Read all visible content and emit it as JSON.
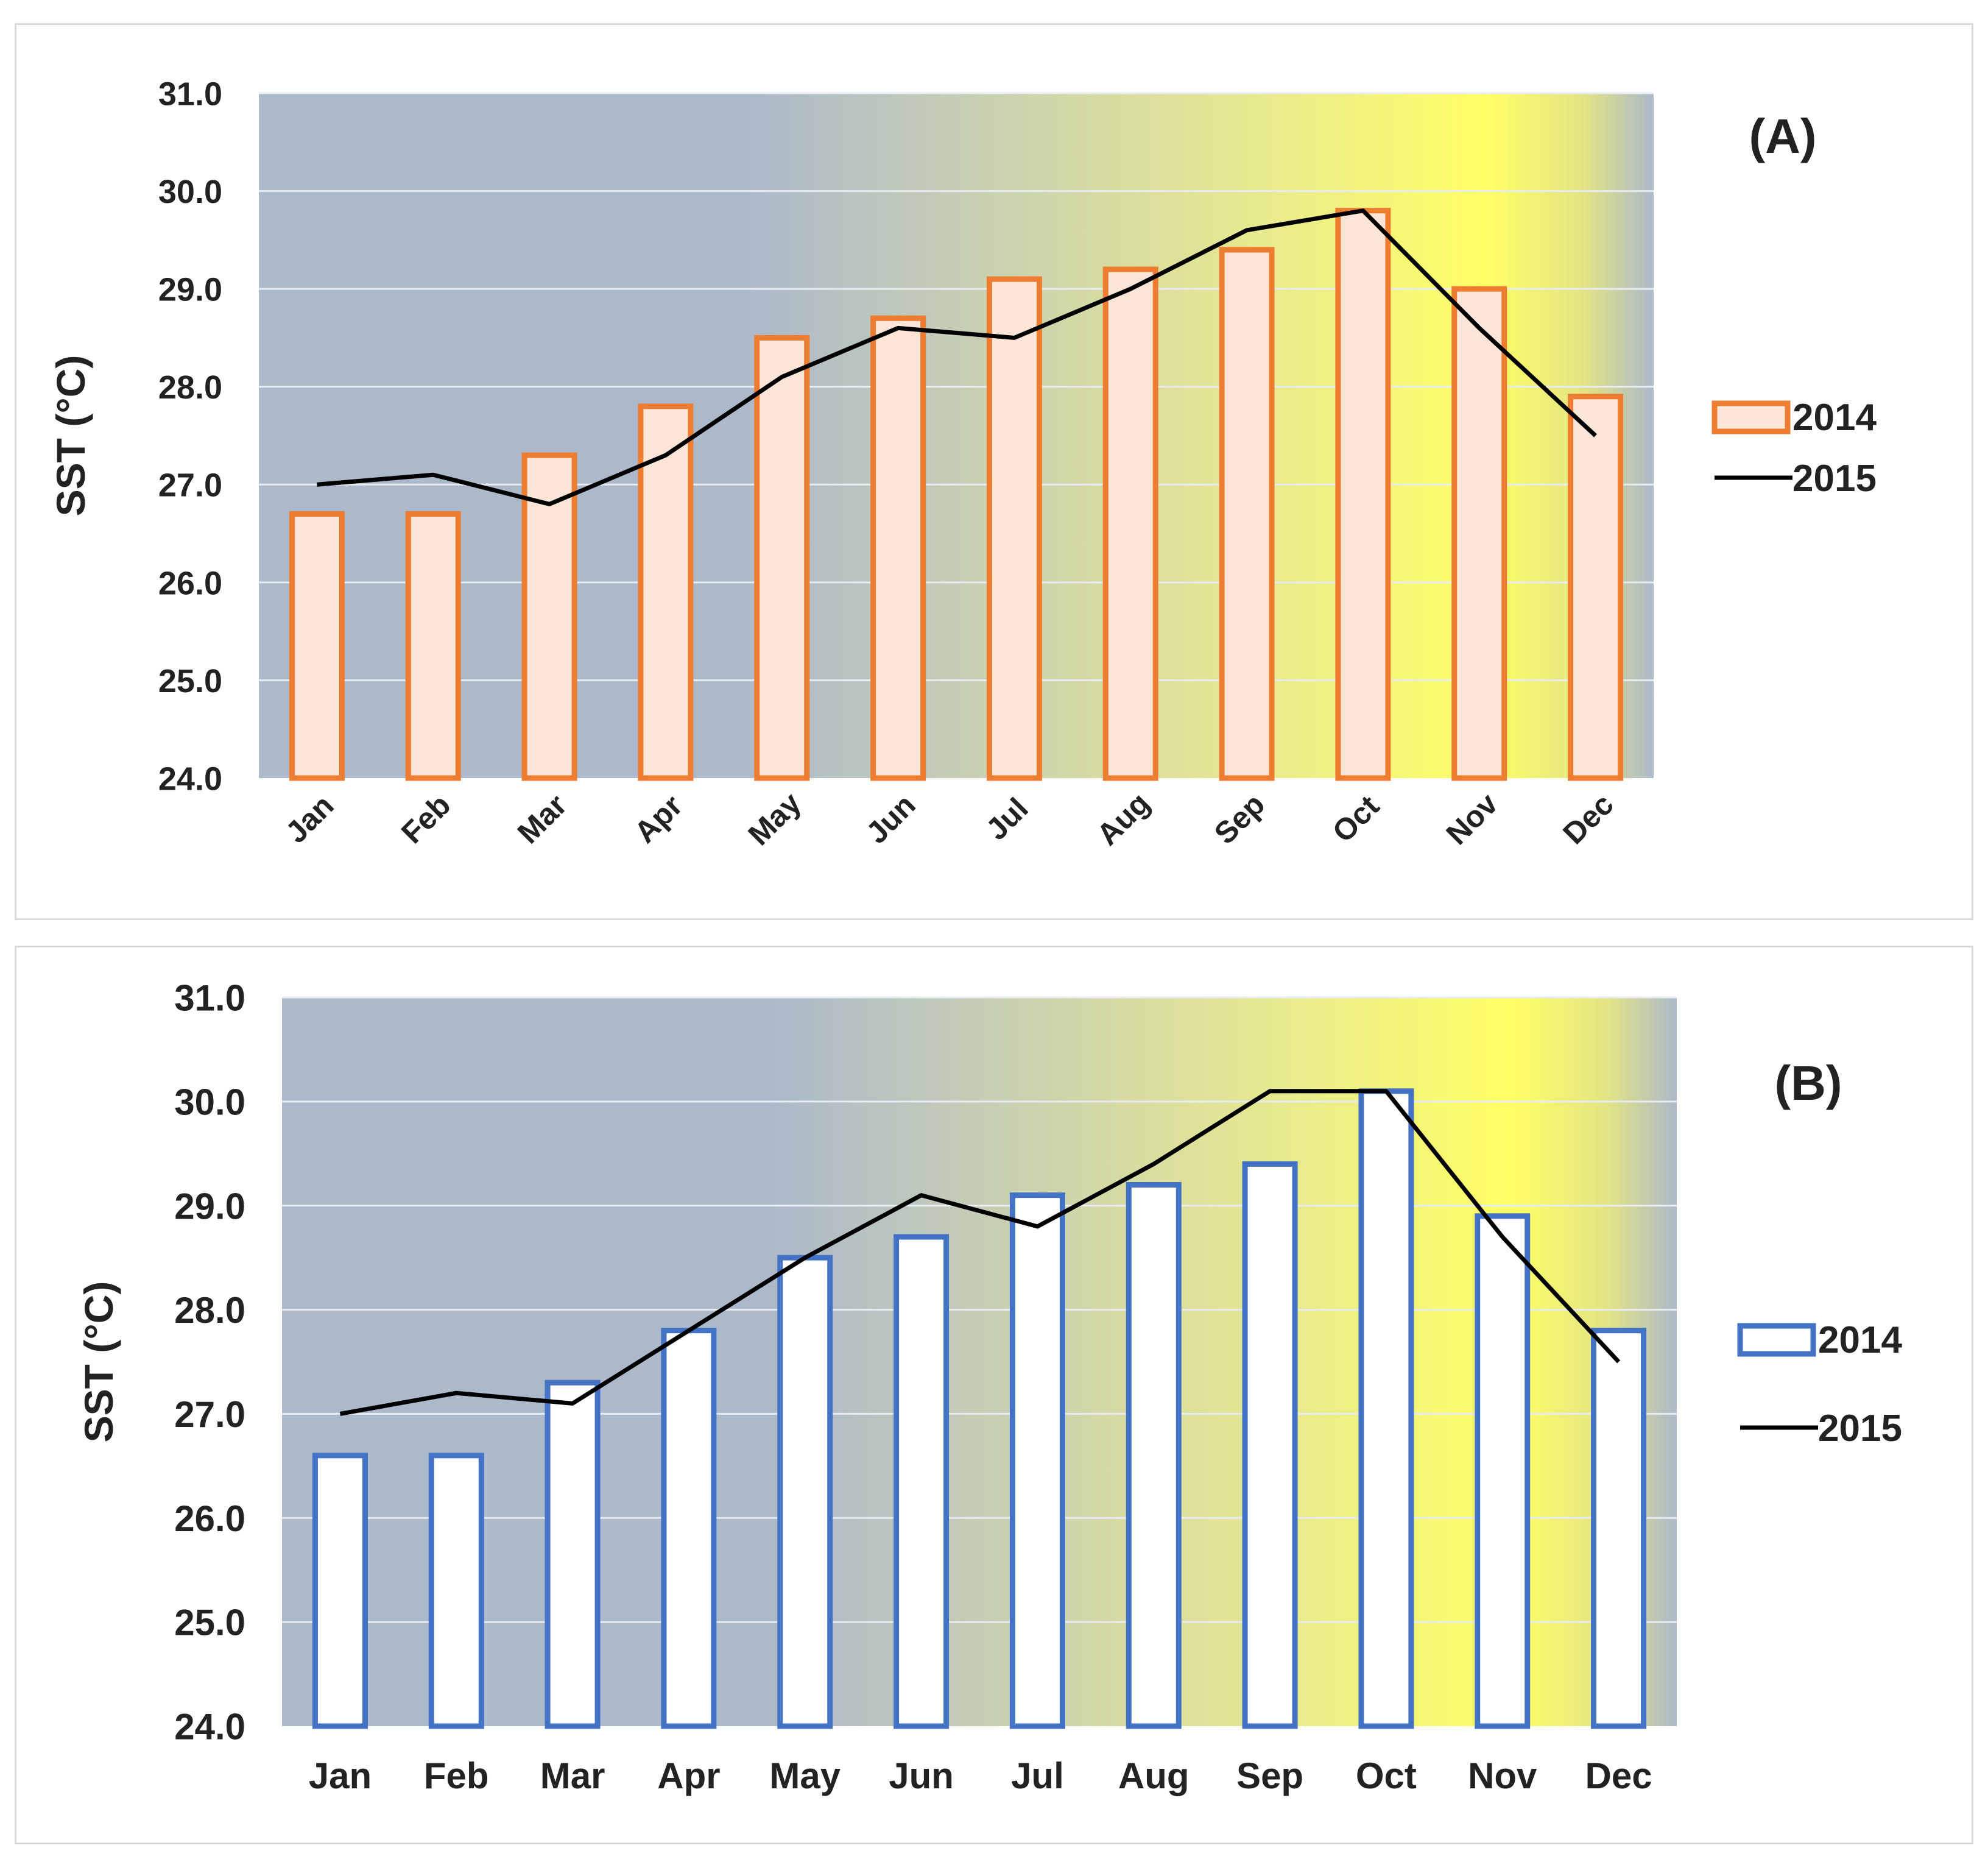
{
  "chart_data": [
    {
      "type": "bar",
      "panel_label": "(A)",
      "ylabel": "SST (°C)",
      "xlabel": "",
      "ylim": [
        24.0,
        31.0
      ],
      "yticks": [
        "24.0",
        "25.0",
        "26.0",
        "27.0",
        "28.0",
        "29.0",
        "30.0",
        "31.0"
      ],
      "grid": true,
      "legend_position": "right",
      "categories": [
        "Jan",
        "Feb",
        "Mar",
        "Apr",
        "May",
        "Jun",
        "Jul",
        "Aug",
        "Sep",
        "Oct",
        "Nov",
        "Dec"
      ],
      "x_tick_rotation": "rotated",
      "series": [
        {
          "name": "2014",
          "type": "bar",
          "values": [
            26.7,
            26.7,
            27.3,
            27.8,
            28.5,
            28.7,
            29.1,
            29.2,
            29.4,
            29.8,
            29.0,
            27.9
          ]
        },
        {
          "name": "2015",
          "type": "line",
          "values": [
            27.0,
            27.1,
            26.8,
            27.3,
            28.1,
            28.6,
            28.5,
            29.0,
            29.6,
            29.8,
            28.6,
            27.5
          ]
        }
      ],
      "colors": {
        "bar_fill": "#fbe5d6",
        "bar_stroke": "#ed7d31",
        "line": "#000000",
        "plot_base": "#acb9ca",
        "highlight": "#ffff66",
        "grid": "#e7ebf2"
      }
    },
    {
      "type": "bar",
      "panel_label": "(B)",
      "ylabel": "SST (°C)",
      "xlabel": "",
      "ylim": [
        24.0,
        31.0
      ],
      "yticks": [
        "24.0",
        "25.0",
        "26.0",
        "27.0",
        "28.0",
        "29.0",
        "30.0",
        "31.0"
      ],
      "grid": true,
      "legend_position": "right",
      "categories": [
        "Jan",
        "Feb",
        "Mar",
        "Apr",
        "May",
        "Jun",
        "Jul",
        "Aug",
        "Sep",
        "Oct",
        "Nov",
        "Dec"
      ],
      "x_tick_rotation": "horizontal",
      "series": [
        {
          "name": "2014",
          "type": "bar",
          "values": [
            26.6,
            26.6,
            27.3,
            27.8,
            28.5,
            28.7,
            29.1,
            29.2,
            29.4,
            30.1,
            28.9,
            27.8
          ]
        },
        {
          "name": "2015",
          "type": "line",
          "values": [
            27.0,
            27.2,
            27.1,
            27.8,
            28.5,
            29.1,
            28.8,
            29.4,
            30.1,
            30.1,
            28.7,
            27.5
          ]
        }
      ],
      "colors": {
        "bar_fill": "#ffffff",
        "bar_stroke": "#4472c4",
        "line": "#000000",
        "plot_base": "#acb9ca",
        "highlight": "#ffff66",
        "grid": "#e7ebf2"
      }
    }
  ]
}
